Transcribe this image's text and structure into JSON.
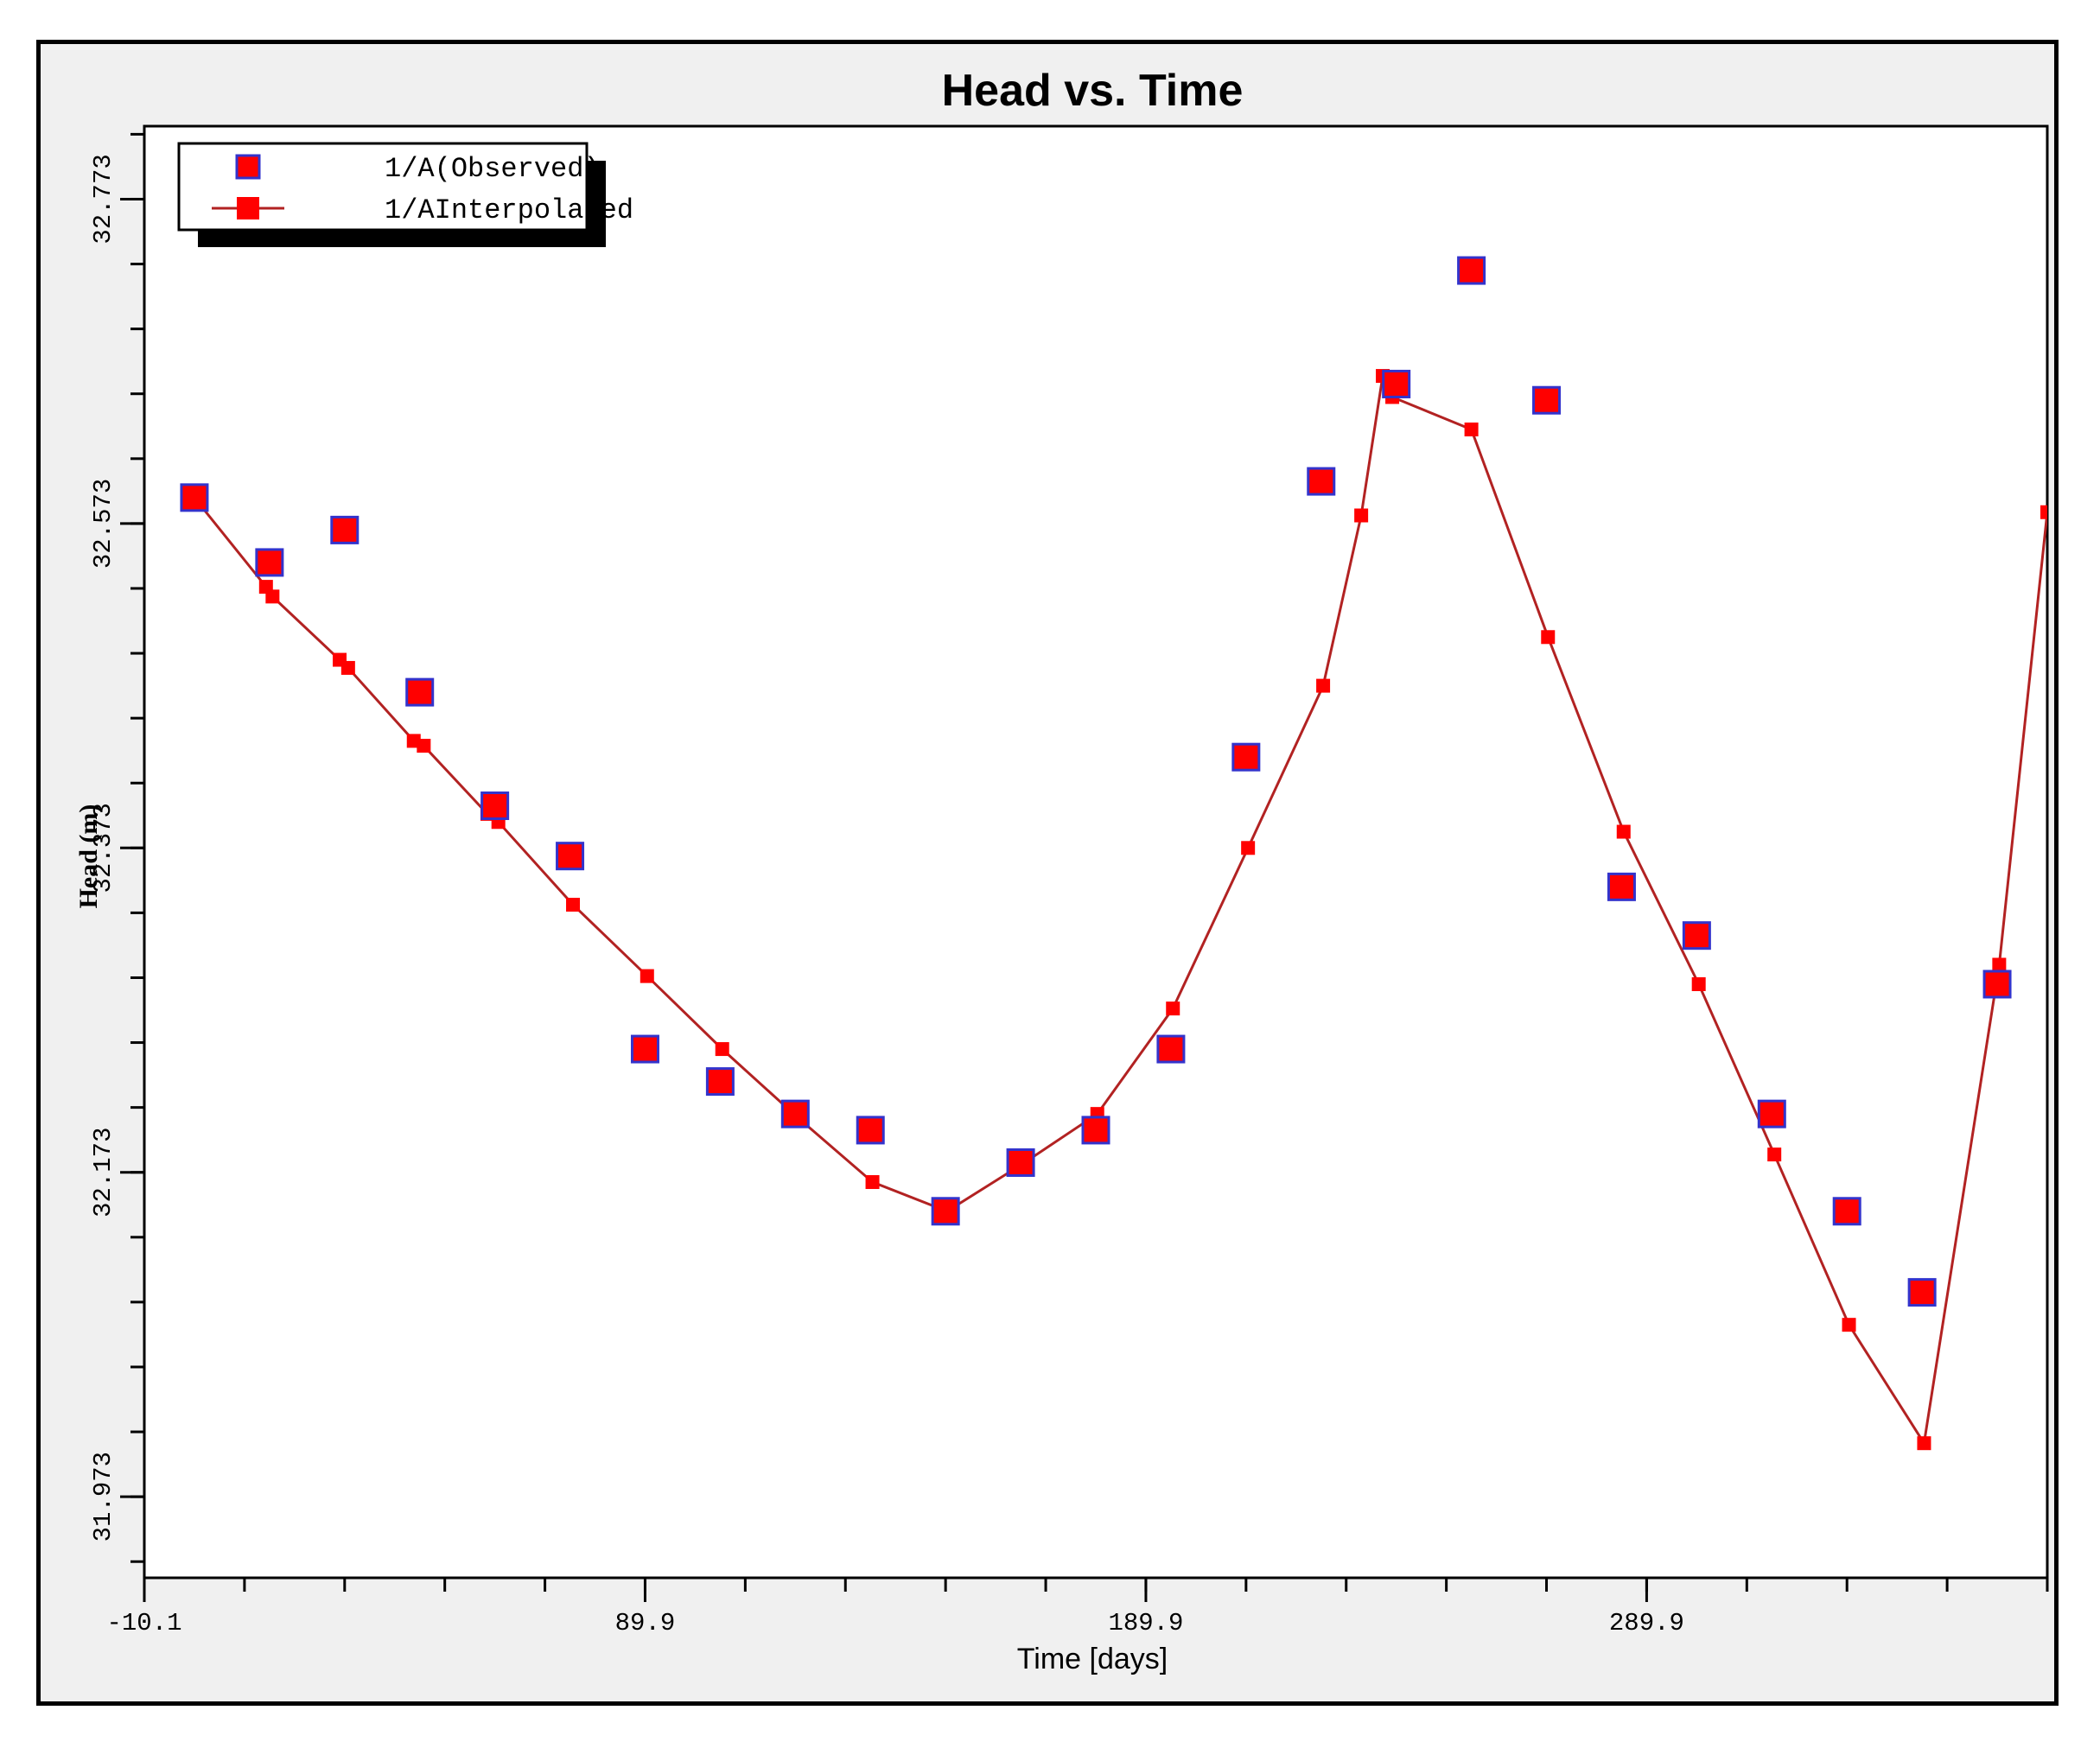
{
  "chart_data": {
    "type": "scatter",
    "title": "Head vs. Time",
    "xlabel": "Time [days]",
    "ylabel": "Head (m)",
    "xlim": [
      -10.1,
      369.9
    ],
    "ylim": [
      31.923,
      32.818
    ],
    "x_ticks": [
      -10.1,
      89.9,
      189.9,
      289.9
    ],
    "x_tick_labels": [
      "-10.1",
      "89.9",
      "189.9",
      "289.9"
    ],
    "y_ticks": [
      31.973,
      32.173,
      32.373,
      32.573,
      32.773
    ],
    "y_tick_labels": [
      "31.973",
      "32.173",
      "32.373",
      "32.573",
      "32.773"
    ],
    "grid": false,
    "legend": "top-left",
    "series": [
      {
        "name": "1/A(Observed)",
        "style": "markers",
        "color": "#ff0000",
        "edge_color": "#3333cc",
        "x": [
          -0.1,
          14.9,
          29.9,
          44.9,
          59.9,
          74.9,
          89.9,
          104.9,
          119.9,
          134.9,
          149.9,
          164.9,
          179.9,
          194.9,
          209.9,
          224.9,
          239.9,
          254.9,
          269.9,
          284.9,
          299.9,
          314.9,
          329.9,
          344.9,
          359.9
        ],
        "y": [
          32.589,
          32.549,
          32.569,
          32.469,
          32.399,
          32.368,
          32.249,
          32.229,
          32.209,
          32.199,
          32.149,
          32.179,
          32.199,
          32.249,
          32.429,
          32.599,
          32.659,
          32.729,
          32.649,
          32.349,
          32.319,
          32.209,
          32.149,
          32.099,
          32.289
        ]
      },
      {
        "name": "1/AInterpolated",
        "style": "line+markers",
        "color": "#ff0000",
        "line_color": "#b22222",
        "x": [
          -0.1,
          14.2,
          15.5,
          28.9,
          30.6,
          43.7,
          45.7,
          58.4,
          60.6,
          75.5,
          90.3,
          105.3,
          120.3,
          135.3,
          150.2,
          165.2,
          180.2,
          195.3,
          210.3,
          225.3,
          232.9,
          237.2,
          239.1,
          254.9,
          270.2,
          285.3,
          300.3,
          315.4,
          330.3,
          345.3,
          360.3,
          369.9
        ],
        "y": [
          32.589,
          32.534,
          32.528,
          32.489,
          32.484,
          32.439,
          32.436,
          32.394,
          32.389,
          32.338,
          32.294,
          32.249,
          32.207,
          32.167,
          32.149,
          32.178,
          32.209,
          32.274,
          32.373,
          32.473,
          32.578,
          32.664,
          32.651,
          32.631,
          32.503,
          32.383,
          32.289,
          32.184,
          32.079,
          32.006,
          32.301,
          32.58
        ]
      }
    ]
  }
}
